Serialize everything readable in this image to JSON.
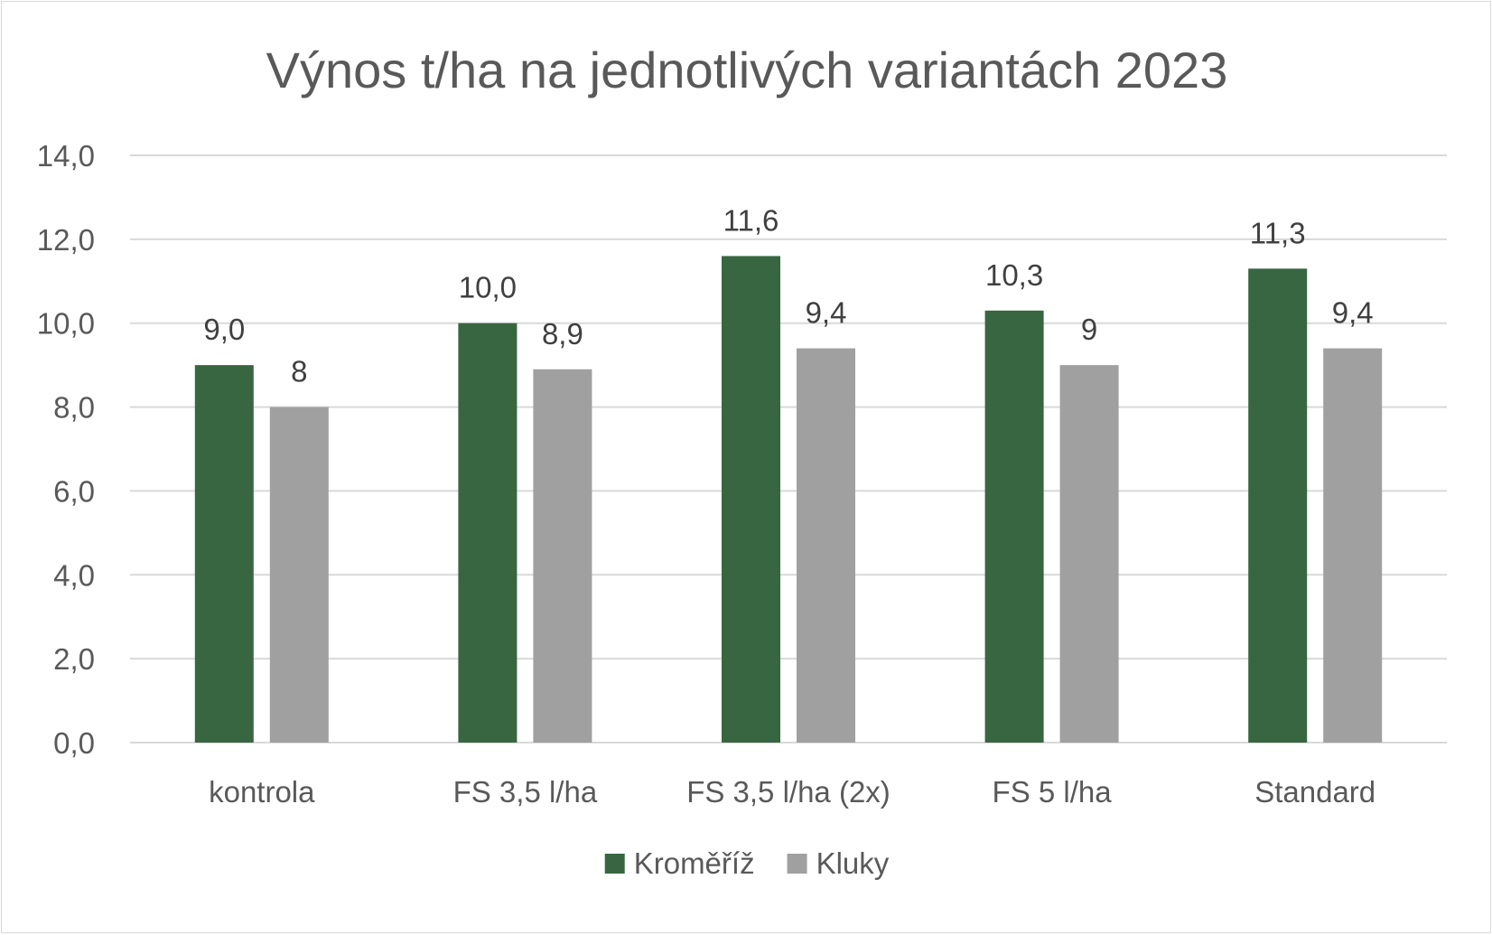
{
  "chart_data": {
    "type": "bar",
    "title": "Výnos t/ha na jednotlivých variantách 2023",
    "xlabel": "",
    "ylabel": "",
    "categories": [
      "kontrola",
      "FS 3,5 l/ha",
      "FS 3,5 l/ha (2x)",
      "FS 5 l/ha",
      "Standard"
    ],
    "series": [
      {
        "name": "Kroměříž",
        "color": "#376641",
        "values": [
          9.0,
          10.0,
          11.6,
          10.3,
          11.3
        ],
        "labels": [
          "9,0",
          "10,0",
          "11,6",
          "10,3",
          "11,3"
        ]
      },
      {
        "name": "Kluky",
        "color": "#a0a0a0",
        "values": [
          8,
          8.9,
          9.4,
          9,
          9.4
        ],
        "labels": [
          "8",
          "8,9",
          "9,4",
          "9",
          "9,4"
        ]
      }
    ],
    "ylim": [
      0,
      14
    ],
    "yticks": [
      "0,0",
      "2,0",
      "4,0",
      "6,0",
      "8,0",
      "10,0",
      "12,0",
      "14,0"
    ],
    "grid": true,
    "legend_position": "bottom"
  }
}
